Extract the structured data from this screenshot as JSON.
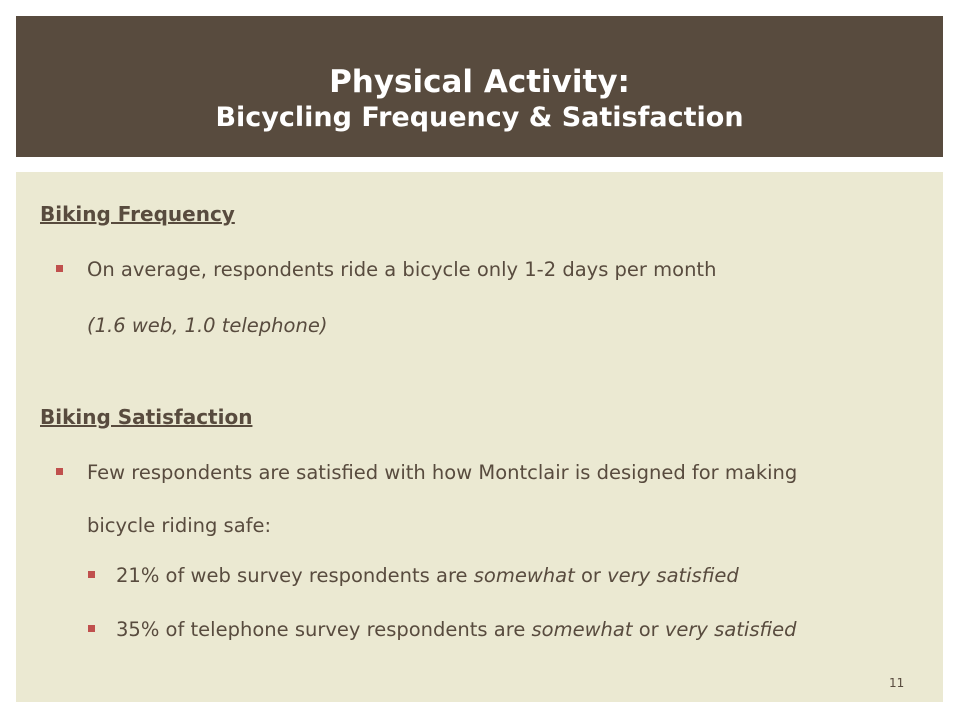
{
  "header": {
    "title": "Physical Activity:",
    "subtitle": "Bicycling Frequency & Satisfaction"
  },
  "colors": {
    "header_bg": "#584b3e",
    "content_bg": "#ebe9d2",
    "text": "#584b3e",
    "bullet": "#c0504d"
  },
  "sections": {
    "frequency": {
      "heading": "Biking Frequency",
      "bullet1": "On average, respondents ride a bicycle only 1-2 days per month",
      "note": "(1.6 web, 1.0 telephone)"
    },
    "satisfaction": {
      "heading": "Biking Satisfaction",
      "bullet1_line1": "Few respondents are satisfied with how Montclair is designed for making",
      "bullet1_line2": "bicycle riding safe:",
      "sub1": {
        "prefix": "21% of web survey respondents are ",
        "em1": "somewhat",
        "mid": " or ",
        "em2": "very satisfied"
      },
      "sub2": {
        "prefix": "35% of telephone survey respondents are ",
        "em1": "somewhat",
        "mid": " or ",
        "em2": "very satisfied"
      }
    }
  },
  "page_number": "11"
}
